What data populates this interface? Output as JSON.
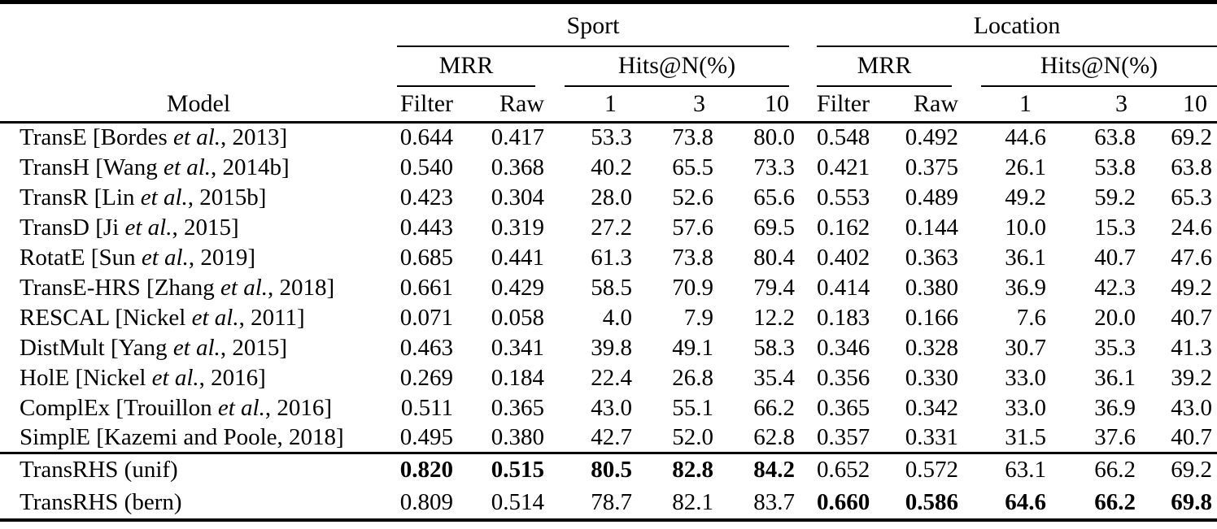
{
  "colors": {
    "background": "#ffffff",
    "text": "#000000",
    "rule": "#000000"
  },
  "table": {
    "header": {
      "group_sport": "Sport",
      "group_location": "Location",
      "mrr": "MRR",
      "hits": "Hits@N(%)",
      "model": "Model",
      "filter": "Filter",
      "raw": "Raw",
      "n1": "1",
      "n3": "3",
      "n10": "10"
    },
    "rows": [
      {
        "section": "baseline",
        "model": {
          "prefix": "TransE [Bordes ",
          "etal": "et al.",
          "suffix": ", 2013]"
        },
        "sport": [
          "0.644",
          "0.417",
          "53.3",
          "73.8",
          "80.0"
        ],
        "location": [
          "0.548",
          "0.492",
          "44.6",
          "63.8",
          "69.2"
        ],
        "bold": {
          "sport": false,
          "location": false
        }
      },
      {
        "section": "baseline",
        "model": {
          "prefix": "TransH [Wang ",
          "etal": "et al.",
          "suffix": ", 2014b]"
        },
        "sport": [
          "0.540",
          "0.368",
          "40.2",
          "65.5",
          "73.3"
        ],
        "location": [
          "0.421",
          "0.375",
          "26.1",
          "53.8",
          "63.8"
        ],
        "bold": {
          "sport": false,
          "location": false
        }
      },
      {
        "section": "baseline",
        "model": {
          "prefix": "TransR [Lin ",
          "etal": "et al.",
          "suffix": ", 2015b]"
        },
        "sport": [
          "0.423",
          "0.304",
          "28.0",
          "52.6",
          "65.6"
        ],
        "location": [
          "0.553",
          "0.489",
          "49.2",
          "59.2",
          "65.3"
        ],
        "bold": {
          "sport": false,
          "location": false
        }
      },
      {
        "section": "baseline",
        "model": {
          "prefix": "TransD [Ji ",
          "etal": "et al.",
          "suffix": ", 2015]"
        },
        "sport": [
          "0.443",
          "0.319",
          "27.2",
          "57.6",
          "69.5"
        ],
        "location": [
          "0.162",
          "0.144",
          "10.0",
          "15.3",
          "24.6"
        ],
        "bold": {
          "sport": false,
          "location": false
        }
      },
      {
        "section": "baseline",
        "model": {
          "prefix": "RotatE [Sun ",
          "etal": "et al.",
          "suffix": ", 2019]"
        },
        "sport": [
          "0.685",
          "0.441",
          "61.3",
          "73.8",
          "80.4"
        ],
        "location": [
          "0.402",
          "0.363",
          "36.1",
          "40.7",
          "47.6"
        ],
        "bold": {
          "sport": false,
          "location": false
        }
      },
      {
        "section": "baseline",
        "model": {
          "prefix": "TransE-HRS [Zhang ",
          "etal": "et al.",
          "suffix": ", 2018]"
        },
        "sport": [
          "0.661",
          "0.429",
          "58.5",
          "70.9",
          "79.4"
        ],
        "location": [
          "0.414",
          "0.380",
          "36.9",
          "42.3",
          "49.2"
        ],
        "bold": {
          "sport": false,
          "location": false
        }
      },
      {
        "section": "baseline",
        "model": {
          "prefix": "RESCAL [Nickel ",
          "etal": "et al.",
          "suffix": ", 2011]"
        },
        "sport": [
          "0.071",
          "0.058",
          "4.0",
          "7.9",
          "12.2"
        ],
        "location": [
          "0.183",
          "0.166",
          "7.6",
          "20.0",
          "40.7"
        ],
        "bold": {
          "sport": false,
          "location": false
        }
      },
      {
        "section": "baseline",
        "model": {
          "prefix": "DistMult [Yang ",
          "etal": "et al.",
          "suffix": ", 2015]"
        },
        "sport": [
          "0.463",
          "0.341",
          "39.8",
          "49.1",
          "58.3"
        ],
        "location": [
          "0.346",
          "0.328",
          "30.7",
          "35.3",
          "41.3"
        ],
        "bold": {
          "sport": false,
          "location": false
        }
      },
      {
        "section": "baseline",
        "model": {
          "prefix": "HolE [Nickel ",
          "etal": "et al.",
          "suffix": ", 2016]"
        },
        "sport": [
          "0.269",
          "0.184",
          "22.4",
          "26.8",
          "35.4"
        ],
        "location": [
          "0.356",
          "0.330",
          "33.0",
          "36.1",
          "39.2"
        ],
        "bold": {
          "sport": false,
          "location": false
        }
      },
      {
        "section": "baseline",
        "model": {
          "prefix": "ComplEx [Trouillon ",
          "etal": "et al.",
          "suffix": ", 2016]"
        },
        "sport": [
          "0.511",
          "0.365",
          "43.0",
          "55.1",
          "66.2"
        ],
        "location": [
          "0.365",
          "0.342",
          "33.0",
          "36.9",
          "43.0"
        ],
        "bold": {
          "sport": false,
          "location": false
        }
      },
      {
        "section": "baseline",
        "model": {
          "prefix": "SimplE [Kazemi and Poole, 2018]",
          "etal": "",
          "suffix": ""
        },
        "sport": [
          "0.495",
          "0.380",
          "42.7",
          "52.0",
          "62.8"
        ],
        "location": [
          "0.357",
          "0.331",
          "31.5",
          "37.6",
          "40.7"
        ],
        "bold": {
          "sport": false,
          "location": false
        }
      },
      {
        "section": "proposed",
        "model": {
          "prefix": "TransRHS (unif)",
          "etal": "",
          "suffix": ""
        },
        "sport": [
          "0.820",
          "0.515",
          "80.5",
          "82.8",
          "84.2"
        ],
        "location": [
          "0.652",
          "0.572",
          "63.1",
          "66.2",
          "69.2"
        ],
        "bold": {
          "sport": true,
          "location": false
        }
      },
      {
        "section": "proposed",
        "model": {
          "prefix": "TransRHS (bern)",
          "etal": "",
          "suffix": ""
        },
        "sport": [
          "0.809",
          "0.514",
          "78.7",
          "82.1",
          "83.7"
        ],
        "location": [
          "0.660",
          "0.586",
          "64.6",
          "66.2",
          "69.8"
        ],
        "bold": {
          "sport": false,
          "location": true
        }
      }
    ]
  }
}
